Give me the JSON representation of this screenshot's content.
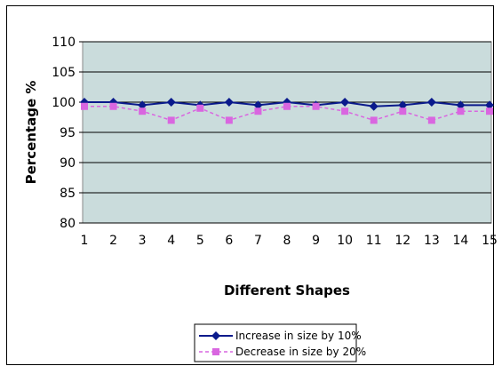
{
  "chart_data": {
    "type": "line",
    "title": "",
    "xlabel": "Different Shapes",
    "ylabel": "Percentage %",
    "categories": [
      "1",
      "2",
      "3",
      "4",
      "5",
      "6",
      "7",
      "8",
      "9",
      "10",
      "11",
      "12",
      "13",
      "14",
      "15"
    ],
    "ylim": [
      80,
      110
    ],
    "yticks": [
      "80",
      "85",
      "90",
      "95",
      "100",
      "105",
      "110"
    ],
    "grid": true,
    "legend_position": "bottom",
    "plot_background": "#cadcdc",
    "series": [
      {
        "name": "Increase in size by 10%",
        "color": "#0a1a8c",
        "line_style": "solid",
        "marker": "diamond",
        "values": [
          100,
          100,
          99.5,
          100,
          99.5,
          100,
          99.5,
          100,
          99.5,
          100,
          99.3,
          99.5,
          100,
          99.5,
          99.5
        ]
      },
      {
        "name": "Decrease in size by 20%",
        "color": "#d966e0",
        "line_style": "dashed",
        "marker": "square",
        "values": [
          99.3,
          99.3,
          98.5,
          97,
          99,
          97,
          98.5,
          99.3,
          99.3,
          98.5,
          97,
          98.5,
          97,
          98.5,
          98.5
        ]
      }
    ]
  }
}
